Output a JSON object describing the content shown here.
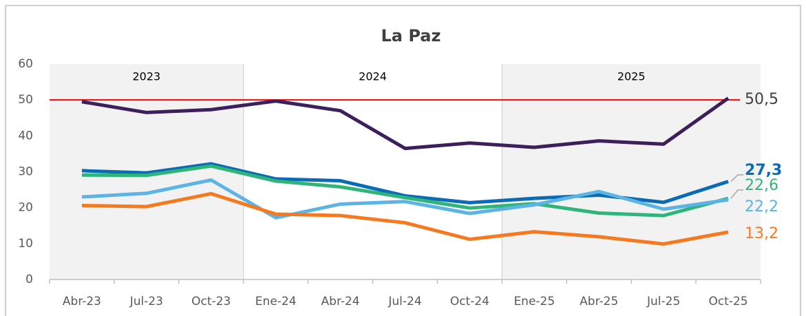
{
  "chart_data": {
    "type": "line",
    "title": "La Paz",
    "categories": [
      "Abr-23",
      "Jul-23",
      "Oct-23",
      "Ene-24",
      "Abr-24",
      "Jul-24",
      "Oct-24",
      "Ene-25",
      "Abr-25",
      "Jul-25",
      "Oct-25"
    ],
    "periods": [
      {
        "label": "2023",
        "start": 0,
        "end": 2,
        "shaded": true
      },
      {
        "label": "2024",
        "start": 3,
        "end": 6,
        "shaded": false
      },
      {
        "label": "2025",
        "start": 7,
        "end": 10,
        "shaded": true
      }
    ],
    "threshold": {
      "value": 50,
      "color": "#ff0000"
    },
    "series": [
      {
        "color": "#3d1f5c",
        "label_color": "#404040",
        "values": [
          49.5,
          46.5,
          47.3,
          49.7,
          47,
          36.5,
          38,
          36.8,
          38.6,
          37.7,
          50.5
        ],
        "value_labels": [
          null,
          null,
          null,
          null,
          null,
          null,
          null,
          null,
          null,
          null,
          "50,5"
        ]
      },
      {
        "color": "#0b6bb5",
        "label_color": "#0b6bb5",
        "bold": true,
        "values": [
          30.3,
          29.7,
          32.2,
          28,
          27.5,
          23.3,
          21.4,
          22.6,
          23.5,
          21.5,
          27.3
        ],
        "value_labels": [
          null,
          null,
          null,
          null,
          null,
          null,
          null,
          null,
          null,
          null,
          "27,3"
        ]
      },
      {
        "color": "#2fb57a",
        "label_color": "#2fb57a",
        "values": [
          29.1,
          29,
          31.6,
          27.4,
          25.8,
          22.8,
          19.9,
          21.1,
          18.5,
          17.8,
          22.6
        ],
        "value_labels": [
          null,
          null,
          null,
          null,
          null,
          null,
          null,
          null,
          null,
          null,
          "22,6"
        ]
      },
      {
        "color": "#5bb4e3",
        "label_color": "#5bb4e3",
        "values": [
          23,
          24,
          27.7,
          17.2,
          21,
          21.7,
          18.4,
          20.8,
          24.5,
          19.6,
          22.2
        ],
        "value_labels": [
          null,
          null,
          null,
          null,
          null,
          null,
          null,
          null,
          null,
          null,
          "22,2"
        ]
      },
      {
        "color": "#f57a1f",
        "label_color": "#f57a1f",
        "values": [
          20.6,
          20.3,
          23.9,
          18.2,
          17.8,
          15.8,
          11.2,
          13.3,
          11.9,
          9.9,
          13.2
        ],
        "value_labels": [
          null,
          null,
          null,
          null,
          null,
          null,
          null,
          null,
          null,
          null,
          "13,2"
        ]
      }
    ],
    "ylim": [
      0,
      60
    ],
    "yticks": [
      0,
      10,
      20,
      30,
      40,
      50,
      60
    ]
  }
}
